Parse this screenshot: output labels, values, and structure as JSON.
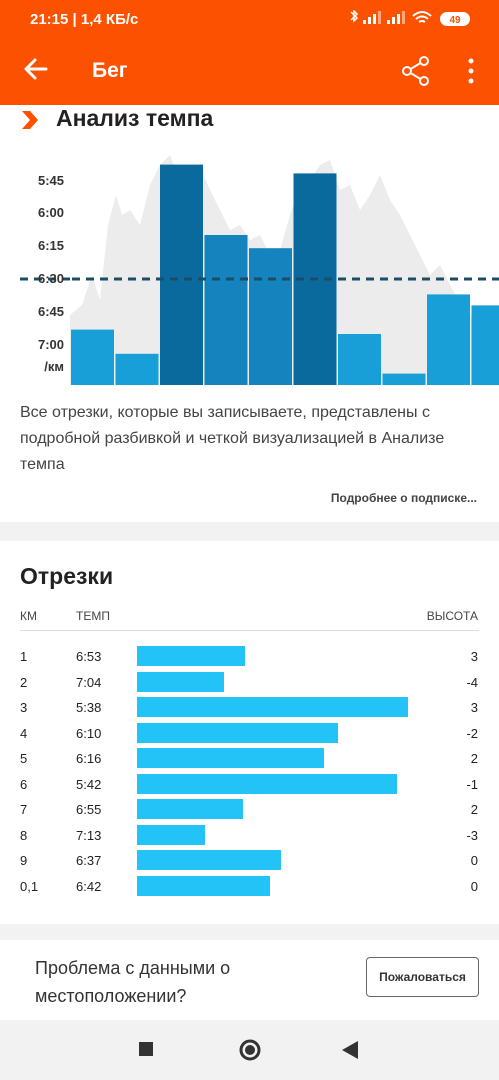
{
  "status_bar": {
    "time": "21:15 | 1,4 КБ/с",
    "battery": "49"
  },
  "app_bar": {
    "title": "Бег"
  },
  "pace_analysis": {
    "title": "Анализ темпа",
    "description": "Все отрезки, которые вы записываете, представлены с подробной разбивкой и четкой визуализацией в Анализе темпа",
    "more_link": "Подробнее о подписке..."
  },
  "chart_data": {
    "type": "bar",
    "y_tick_labels": [
      "5:45",
      "6:00",
      "6:15",
      "6:30",
      "6:45",
      "7:00",
      "/км"
    ],
    "yaxis_unit": "/км",
    "reference_line": "6:30",
    "series": [
      {
        "values": [
          "6:53",
          "7:04",
          "5:38",
          "6:10",
          "6:16",
          "5:42",
          "6:55",
          "7:13",
          "6:37",
          "6:42"
        ]
      }
    ],
    "colors": {
      "bar": "#189fd7",
      "bar_fast": "#0a6a9d",
      "reference": "#1c4d66",
      "background_area": "#ececec"
    }
  },
  "splits": {
    "title": "Отрезки",
    "headers": {
      "km": "КМ",
      "pace": "ТЕМП",
      "elev": "ВЫСОТА"
    },
    "rows": [
      {
        "km": "1",
        "pace": "6:53",
        "elev": "3",
        "bar_fraction": 0.4
      },
      {
        "km": "2",
        "pace": "7:04",
        "elev": "-4",
        "bar_fraction": 0.32
      },
      {
        "km": "3",
        "pace": "5:38",
        "elev": "3",
        "bar_fraction": 1.0
      },
      {
        "km": "4",
        "pace": "6:10",
        "elev": "-2",
        "bar_fraction": 0.74
      },
      {
        "km": "5",
        "pace": "6:16",
        "elev": "2",
        "bar_fraction": 0.69
      },
      {
        "km": "6",
        "pace": "5:42",
        "elev": "-1",
        "bar_fraction": 0.96
      },
      {
        "km": "7",
        "pace": "6:55",
        "elev": "2",
        "bar_fraction": 0.39
      },
      {
        "km": "8",
        "pace": "7:13",
        "elev": "-3",
        "bar_fraction": 0.25
      },
      {
        "km": "9",
        "pace": "6:37",
        "elev": "0",
        "bar_fraction": 0.53
      },
      {
        "km": "0,1",
        "pace": "6:42",
        "elev": "0",
        "bar_fraction": 0.49
      }
    ],
    "bar_color": "#23c2f7"
  },
  "report": {
    "question": "Проблема с данными о местоположении?",
    "button": "Пожаловаться"
  }
}
